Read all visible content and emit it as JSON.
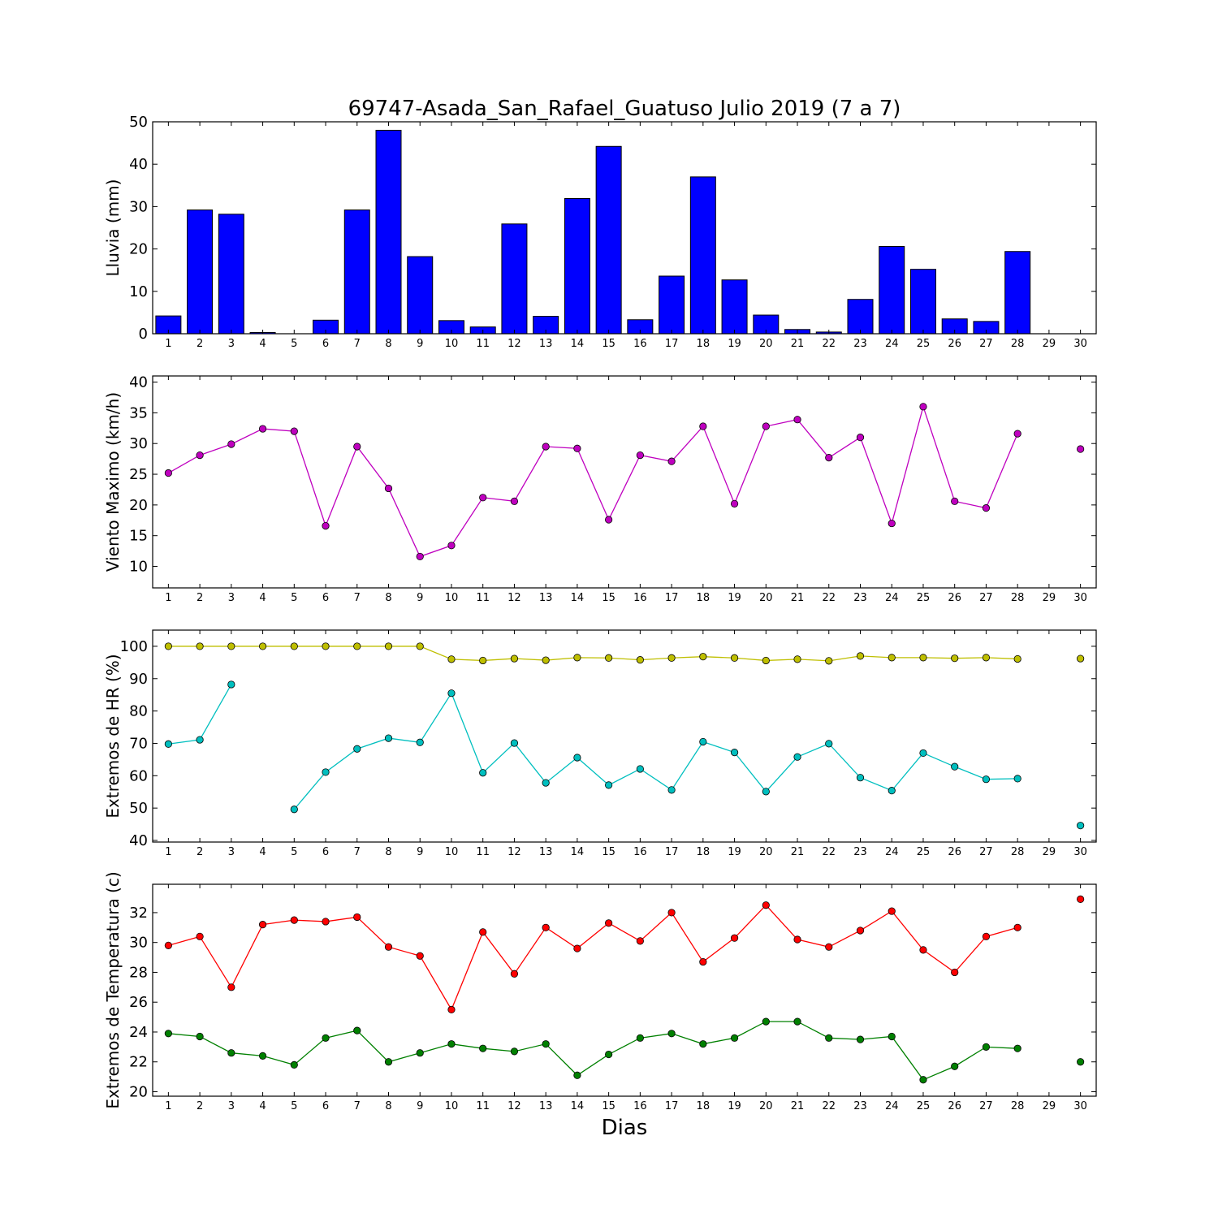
{
  "title": "69747-Asada_San_Rafael_Guatuso Julio 2019  (7 a 7)",
  "xlabel": "Dias",
  "colors": {
    "bar_fill": "#0000ff",
    "wind": "#bf00bf",
    "hr_max": "#bfbf00",
    "hr_min": "#00bfbf",
    "temp_max": "#ff0000",
    "temp_min": "#008000"
  },
  "chart_data": [
    {
      "type": "bar",
      "ylabel": "Lluvia (mm)",
      "ylim": [
        0,
        50
      ],
      "yticks": [
        0,
        10,
        20,
        30,
        40,
        50
      ],
      "x": [
        1,
        2,
        3,
        4,
        5,
        6,
        7,
        8,
        9,
        10,
        11,
        12,
        13,
        14,
        15,
        16,
        17,
        18,
        19,
        20,
        21,
        22,
        23,
        24,
        25,
        26,
        27,
        28,
        29,
        30
      ],
      "xlim": [
        0.5,
        30.5
      ],
      "series": [
        {
          "values": [
            4.2,
            29.2,
            28.2,
            0.3,
            0,
            3.2,
            29.2,
            48,
            18.2,
            3.1,
            1.6,
            25.9,
            4.1,
            31.9,
            44.2,
            3.3,
            13.6,
            37,
            12.7,
            4.4,
            1,
            0.4,
            8.1,
            20.6,
            15.2,
            3.5,
            2.9,
            19.4,
            null,
            null
          ]
        }
      ]
    },
    {
      "type": "line",
      "ylabel": "Viento Maximo (km/h)",
      "ylim": [
        6.5,
        41
      ],
      "yticks": [
        10,
        15,
        20,
        25,
        30,
        35,
        40
      ],
      "x": [
        1,
        2,
        3,
        4,
        5,
        6,
        7,
        8,
        9,
        10,
        11,
        12,
        13,
        14,
        15,
        16,
        17,
        18,
        19,
        20,
        21,
        22,
        23,
        24,
        25,
        26,
        27,
        28,
        29,
        30
      ],
      "xlim": [
        0.5,
        30.5
      ],
      "series": [
        {
          "values": [
            25.2,
            28.1,
            29.9,
            32.4,
            32,
            16.6,
            29.5,
            22.7,
            11.6,
            13.4,
            21.2,
            20.6,
            29.5,
            29.2,
            17.6,
            28.1,
            27.1,
            32.8,
            20.2,
            32.8,
            33.9,
            27.7,
            31,
            17,
            36,
            20.6,
            19.5,
            31.6,
            null,
            29.1
          ]
        }
      ]
    },
    {
      "type": "line",
      "ylabel": "Extremos de HR (%)",
      "ylim": [
        39.5,
        105
      ],
      "yticks": [
        40,
        50,
        60,
        70,
        80,
        90,
        100
      ],
      "x": [
        1,
        2,
        3,
        4,
        5,
        6,
        7,
        8,
        9,
        10,
        11,
        12,
        13,
        14,
        15,
        16,
        17,
        18,
        19,
        20,
        21,
        22,
        23,
        24,
        25,
        26,
        27,
        28,
        29,
        30
      ],
      "xlim": [
        0.5,
        30.5
      ],
      "series": [
        {
          "values": [
            100,
            100,
            100,
            100,
            100,
            100,
            100,
            100,
            100,
            96,
            95.6,
            96.2,
            95.7,
            96.5,
            96.4,
            95.8,
            96.4,
            96.8,
            96.4,
            95.6,
            96,
            95.5,
            97,
            96.5,
            96.5,
            96.3,
            96.5,
            96.1,
            null,
            96.2
          ]
        },
        {
          "values": [
            69.8,
            71.1,
            88.2,
            null,
            49.6,
            61.1,
            68.3,
            71.6,
            70.3,
            85.5,
            60.9,
            70.1,
            57.8,
            65.6,
            57.1,
            62.1,
            55.6,
            70.5,
            67.2,
            55.1,
            65.8,
            69.9,
            59.4,
            55.4,
            67,
            62.8,
            58.9,
            59.1,
            null,
            44.6
          ]
        }
      ]
    },
    {
      "type": "line",
      "ylabel": "Extremos de Temperatura (c)",
      "ylim": [
        19.7,
        33.9
      ],
      "yticks": [
        20,
        22,
        24,
        26,
        28,
        30,
        32
      ],
      "x": [
        1,
        2,
        3,
        4,
        5,
        6,
        7,
        8,
        9,
        10,
        11,
        12,
        13,
        14,
        15,
        16,
        17,
        18,
        19,
        20,
        21,
        22,
        23,
        24,
        25,
        26,
        27,
        28,
        29,
        30
      ],
      "xlim": [
        0.5,
        30.5
      ],
      "series": [
        {
          "values": [
            29.8,
            30.4,
            27,
            31.2,
            31.5,
            31.4,
            31.7,
            29.7,
            29.1,
            25.5,
            30.7,
            27.9,
            31,
            29.6,
            31.3,
            30.1,
            32,
            28.7,
            30.3,
            32.5,
            30.2,
            29.7,
            30.8,
            32.1,
            29.5,
            28,
            30.4,
            31,
            null,
            32.9
          ]
        },
        {
          "values": [
            23.9,
            23.7,
            22.6,
            22.4,
            21.8,
            23.6,
            24.1,
            22,
            22.6,
            23.2,
            22.9,
            22.7,
            23.2,
            21.1,
            22.5,
            23.6,
            23.9,
            23.2,
            23.6,
            24.7,
            24.7,
            23.6,
            23.5,
            23.7,
            20.8,
            21.7,
            23,
            22.9,
            null,
            22
          ]
        }
      ]
    }
  ]
}
